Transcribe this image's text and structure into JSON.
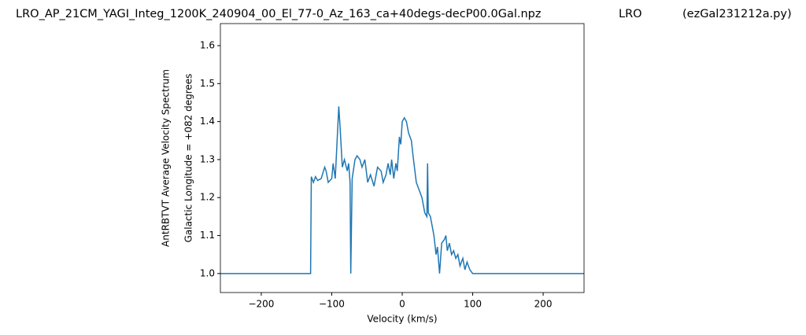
{
  "chart_data": {
    "type": "line",
    "title": [
      "LRO_AP_21CM_YAGI_Integ_1200K_240904_00_El_77-0_Az_163_ca+40degs-decP00.0Gal.npz",
      "LRO",
      "(ezGal231212a.py)"
    ],
    "ylabel": [
      "AntRBTVT Average Velocity Spectrum",
      "Galactic Longitude = +082 degrees"
    ],
    "xlabel": "Velocity (km/s)",
    "xlim": [
      -258,
      258
    ],
    "ylim": [
      0.95,
      1.658
    ],
    "xticks": [
      {
        "value": -200,
        "label": "−200"
      },
      {
        "value": -100,
        "label": "−100"
      },
      0,
      100,
      200
    ],
    "yticks": [
      {
        "value": 1.0,
        "label": "1.0"
      },
      1.1,
      1.2,
      1.3,
      1.4,
      1.5,
      1.6
    ],
    "series": [
      {
        "color": "#1f77b4",
        "x": [
          -258,
          -130,
          -129,
          -126,
          -123,
          -120,
          -115,
          -110,
          -108,
          -105,
          -100,
          -98,
          -95,
          -90,
          -88,
          -85,
          -82,
          -78,
          -76,
          -74,
          -73,
          -71,
          -67,
          -64,
          -60,
          -57,
          -53,
          -49,
          -45,
          -40,
          -35,
          -30,
          -27,
          -23,
          -20,
          -17,
          -15,
          -12,
          -9,
          -7,
          -4,
          -2,
          0,
          3,
          6,
          9,
          13,
          16,
          20,
          24,
          28,
          32,
          35,
          36,
          37,
          40,
          45,
          48,
          50,
          53,
          56,
          60,
          62,
          64,
          67,
          70,
          73,
          76,
          79,
          82,
          86,
          89,
          92,
          96,
          100,
          110,
          258
        ],
        "values": [
          1.0,
          1.0,
          1.255,
          1.24,
          1.255,
          1.245,
          1.25,
          1.28,
          1.27,
          1.24,
          1.25,
          1.29,
          1.25,
          1.44,
          1.38,
          1.28,
          1.3,
          1.27,
          1.29,
          1.24,
          1.0,
          1.25,
          1.3,
          1.31,
          1.3,
          1.28,
          1.3,
          1.24,
          1.26,
          1.23,
          1.28,
          1.27,
          1.24,
          1.26,
          1.29,
          1.26,
          1.3,
          1.25,
          1.29,
          1.27,
          1.36,
          1.34,
          1.4,
          1.41,
          1.4,
          1.37,
          1.35,
          1.3,
          1.24,
          1.22,
          1.2,
          1.16,
          1.15,
          1.29,
          1.16,
          1.15,
          1.1,
          1.05,
          1.07,
          1.0,
          1.08,
          1.09,
          1.1,
          1.06,
          1.08,
          1.05,
          1.06,
          1.04,
          1.05,
          1.02,
          1.04,
          1.01,
          1.03,
          1.01,
          1.0,
          1.0,
          1.0
        ]
      }
    ]
  }
}
